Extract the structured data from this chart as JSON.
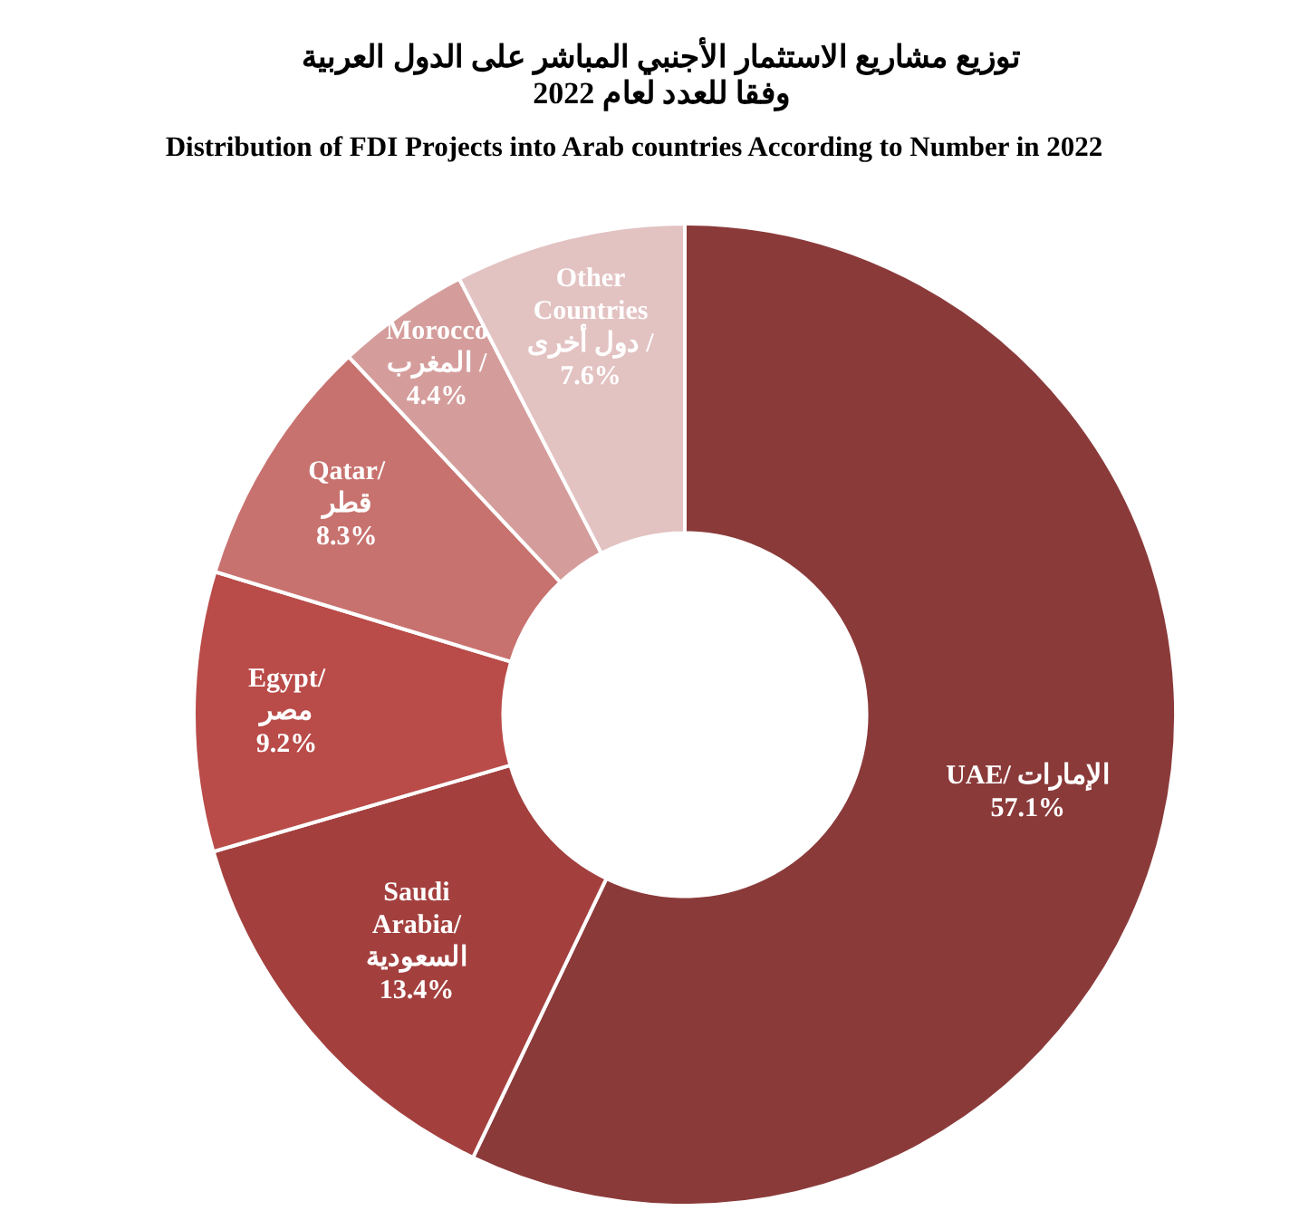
{
  "chart_data": {
    "type": "donut",
    "title": "توزيع مشاريع الاستثمار الأجنبي المباشر على الدول العربية وفقا للعدد لعام 2022",
    "subtitle": "Distribution of FDI Projects into Arab countries According to Number in 2022",
    "categories": [
      "UAE/ الإمارات",
      "Saudi\nArabia/\nالسعودية",
      "Egypt/\nمصر",
      "Qatar/\nقطر",
      "Morocco\nالمغرب /",
      "Other\nCountries\nدول أخرى /"
    ],
    "values": [
      57.1,
      13.4,
      9.2,
      8.3,
      4.4,
      7.6
    ],
    "value_labels": [
      "57.1%",
      "13.4%",
      "9.2%",
      "8.3%",
      "4.4%",
      "7.6%"
    ],
    "colors": [
      "#8b3a3a",
      "#a3403e",
      "#b94b48",
      "#c8726f",
      "#d49d9b",
      "#e3c2c2"
    ],
    "legend": false
  }
}
